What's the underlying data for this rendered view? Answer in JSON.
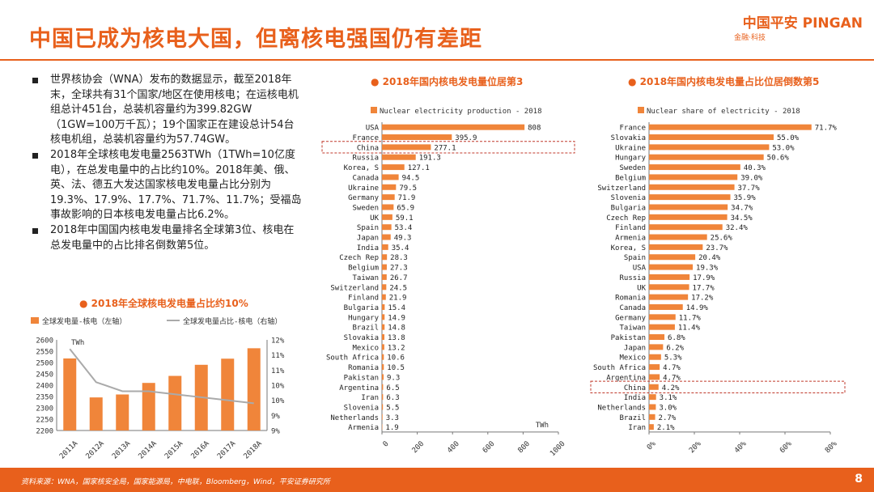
{
  "header": {
    "title": "中国已成为核电大国，但离核电强国仍有差距",
    "logo_main": "中国平安 PINGAN",
    "logo_sub": "金融·科技"
  },
  "bullets": [
    "世界核协会（WNA）发布的数据显示，截至2018年末，全球共有31个国家/地区在使用核电；在运核电机组总计451台，总装机容量约为399.82GW（1GW=100万千瓦）；19个国家正在建设总计54台核电机组，总装机容量约为57.74GW。",
    "2018年全球核电发电量2563TWh（1TWh=10亿度电），在总发电量中的占比约10%。2018年美、俄、英、法、德五大发达国家核电发电量占比分别为19.3%、17.9%、17.7%、71.7%、11.7%；受福岛事故影响的日本核电发电量占比6.2%。",
    "2018年中国国内核电发电量排名全球第3位、核电在总发电量中的占比排名倒数第5位。"
  ],
  "footer": {
    "source": "资料来源：WNA，国家核安全局，国家能源局，中电联，Bloomberg，Wind，平安证券研究所",
    "page": "8"
  },
  "colors": {
    "accent": "#e8601c",
    "bar": "#f0853a",
    "line": "#aaaaaa",
    "highlight": "#c0392b"
  },
  "chart_data": [
    {
      "type": "bar+line",
      "title": "2018年全球核电发电量占比约10%",
      "legend": [
        "全球发电量-核电（左轴）",
        "全球发电量占比-核电（右轴）"
      ],
      "categories": [
        "2011A",
        "2012A",
        "2013A",
        "2014A",
        "2015A",
        "2016A",
        "2017A",
        "2018A"
      ],
      "series": [
        {
          "name": "全球发电量-核电（左轴）",
          "type": "bar",
          "axis": "left",
          "values": [
            2518,
            2346,
            2359,
            2410,
            2441,
            2490,
            2517,
            2563
          ]
        },
        {
          "name": "全球发电量占比-核电（右轴）",
          "type": "line",
          "axis": "right",
          "values": [
            11.7,
            10.6,
            10.3,
            10.3,
            10.2,
            10.1,
            10.0,
            9.9
          ]
        }
      ],
      "ylabel_left": "TWh",
      "ylim_left": [
        2200,
        2600
      ],
      "yticks_left": [
        "2200",
        "2250",
        "2300",
        "2350",
        "2400",
        "2450",
        "2500",
        "2550",
        "2600"
      ],
      "ylim_right": [
        9,
        12
      ],
      "yticks_right": [
        "9%",
        "9%",
        "10%",
        "10%",
        "11%",
        "11%",
        "12%"
      ]
    },
    {
      "type": "bar",
      "orientation": "horizontal",
      "title": "2018年国内核电发电量位居第3",
      "legend": "Nuclear electricity production - 2018",
      "unit": "TWh",
      "xlim": [
        0,
        1000
      ],
      "xticks": [
        "0",
        "200",
        "400",
        "600",
        "800",
        "1000"
      ],
      "highlight": "China",
      "categories": [
        "USA",
        "France",
        "China",
        "Russia",
        "Korea, S",
        "Canada",
        "Ukraine",
        "Germany",
        "Sweden",
        "UK",
        "Spain",
        "Japan",
        "India",
        "Czech Rep",
        "Belgium",
        "Taiwan",
        "Switzerland",
        "Finland",
        "Bulgaria",
        "Hungary",
        "Brazil",
        "Slovakia",
        "Mexico",
        "South Africa",
        "Romania",
        "Pakistan",
        "Argentina",
        "Iran",
        "Slovenia",
        "Netherlands",
        "Armenia"
      ],
      "values": [
        808,
        395.9,
        277.1,
        191.3,
        127.1,
        94.5,
        79.5,
        71.9,
        65.9,
        59.1,
        53.4,
        49.3,
        35.4,
        28.3,
        27.3,
        26.7,
        24.5,
        21.9,
        15.4,
        14.9,
        14.8,
        13.8,
        13.2,
        10.6,
        10.5,
        9.3,
        6.5,
        6.3,
        5.5,
        3.3,
        1.9
      ],
      "labels": [
        "808",
        "395.9",
        "277.1",
        "191.3",
        "127.1",
        "94.5",
        "79.5",
        "71.9",
        "65.9",
        "59.1",
        "53.4",
        "49.3",
        "35.4",
        "28.3",
        "27.3",
        "26.7",
        "24.5",
        "21.9",
        "15.4",
        "14.9",
        "14.8",
        "13.8",
        "13.2",
        "10.6",
        "10.5",
        "9.3",
        "6.5",
        "6.3",
        "5.5",
        "3.3",
        "1.9"
      ]
    },
    {
      "type": "bar",
      "orientation": "horizontal",
      "title": "2018年国内核电发电量占比位居倒数第5",
      "legend": "Nuclear share of electricity - 2018",
      "xlim": [
        0,
        80
      ],
      "xticks": [
        "0%",
        "20%",
        "40%",
        "60%",
        "80%"
      ],
      "highlight": "China",
      "categories": [
        "France",
        "Slovakia",
        "Ukraine",
        "Hungary",
        "Sweden",
        "Belgium",
        "Switzerland",
        "Slovenia",
        "Bulgaria",
        "Czech Rep",
        "Finland",
        "Armenia",
        "Korea, S",
        "Spain",
        "USA",
        "Russia",
        "UK",
        "Romania",
        "Canada",
        "Germany",
        "Taiwan",
        "Pakistan",
        "Japan",
        "Mexico",
        "South Africa",
        "Argentina",
        "China",
        "India",
        "Netherlands",
        "Brazil",
        "Iran"
      ],
      "values": [
        71.7,
        55.0,
        53.0,
        50.6,
        40.3,
        39.0,
        37.7,
        35.9,
        34.7,
        34.5,
        32.4,
        25.6,
        23.7,
        20.4,
        19.3,
        17.9,
        17.7,
        17.2,
        14.9,
        11.7,
        11.4,
        6.8,
        6.2,
        5.3,
        4.7,
        4.7,
        4.2,
        3.1,
        3.0,
        2.7,
        2.1
      ],
      "labels": [
        "71.7%",
        "55.0%",
        "53.0%",
        "50.6%",
        "40.3%",
        "39.0%",
        "37.7%",
        "35.9%",
        "34.7%",
        "34.5%",
        "32.4%",
        "25.6%",
        "23.7%",
        "20.4%",
        "19.3%",
        "17.9%",
        "17.7%",
        "17.2%",
        "14.9%",
        "11.7%",
        "11.4%",
        "6.8%",
        "6.2%",
        "5.3%",
        "4.7%",
        "4.7%",
        "4.2%",
        "3.1%",
        "3.0%",
        "2.7%",
        "2.1%"
      ]
    }
  ]
}
